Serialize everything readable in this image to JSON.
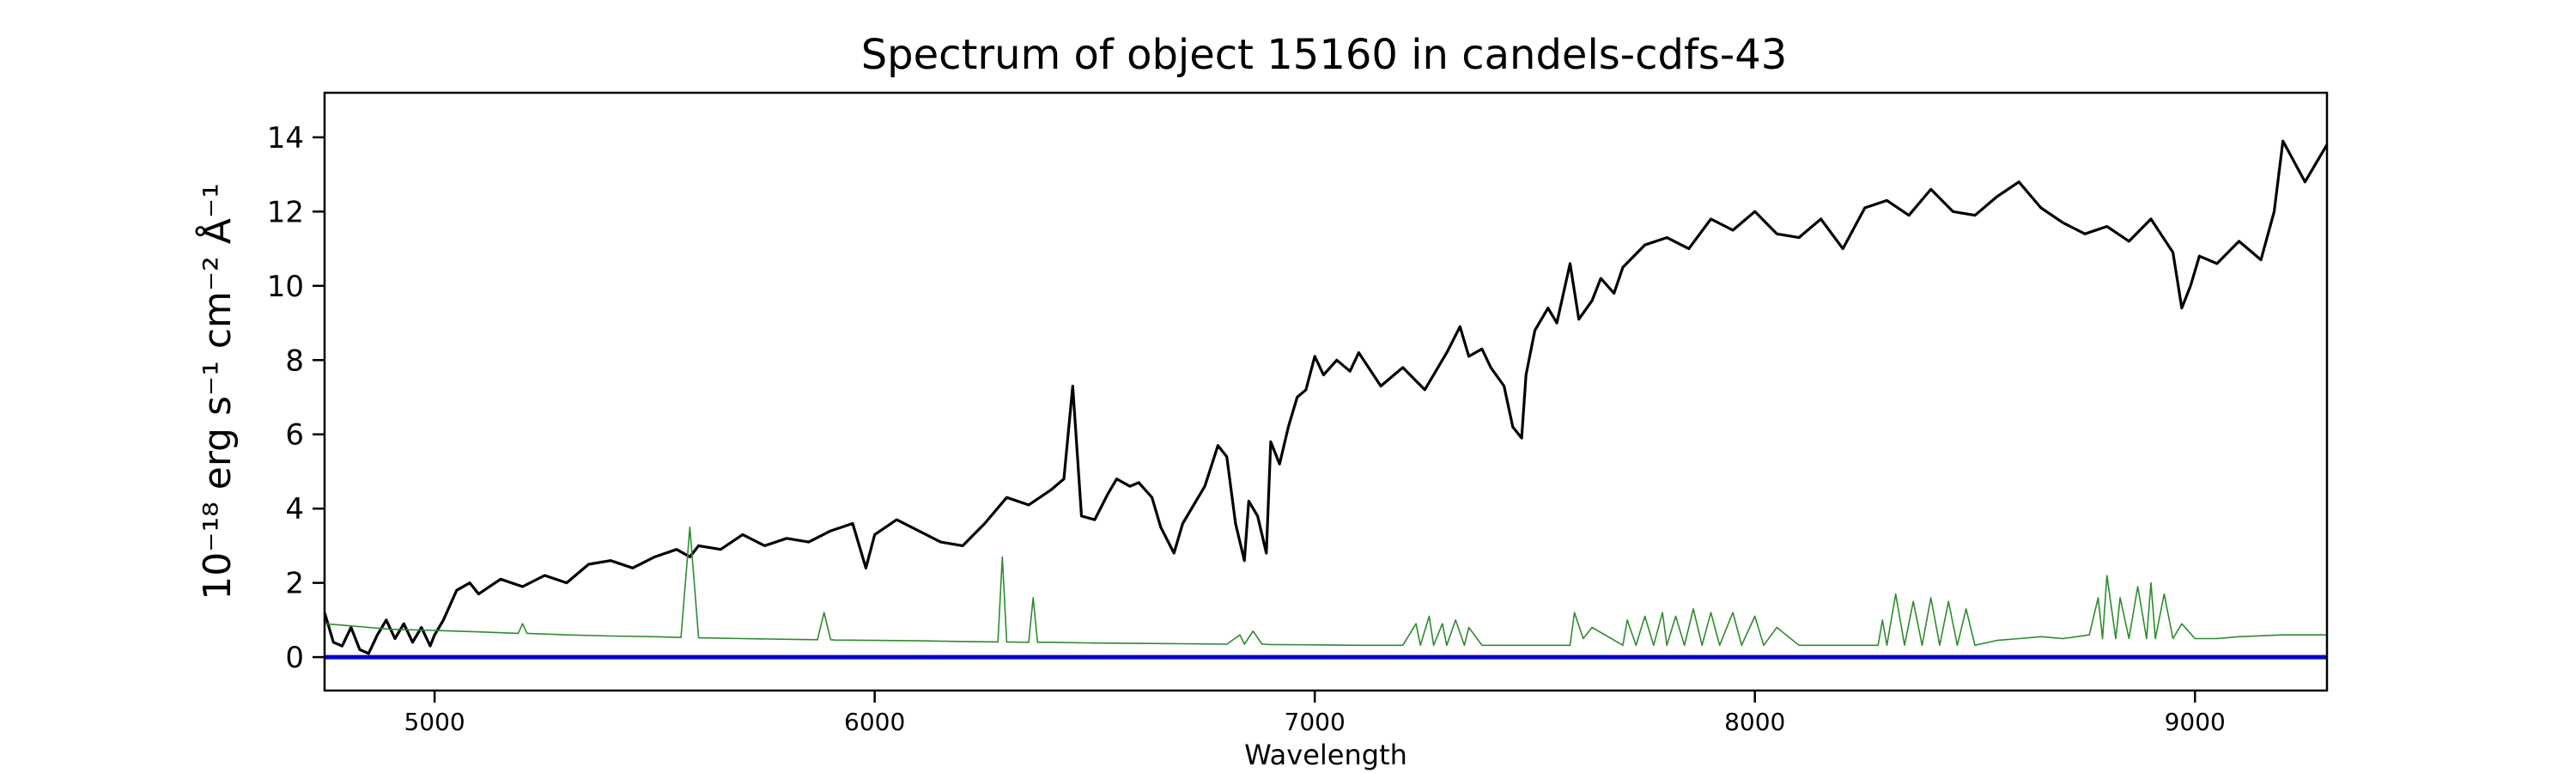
{
  "chart_data": {
    "type": "line",
    "title": "Spectrum of object 15160 in candels-cdfs-43",
    "xlabel": "Wavelength",
    "ylabel": "10⁻¹⁸ erg s⁻¹ cm⁻² Å⁻¹",
    "xlim": [
      4750,
      9300
    ],
    "ylim": [
      -0.9,
      15.2
    ],
    "xticks": [
      5000,
      6000,
      7000,
      8000,
      9000
    ],
    "yticks": [
      0,
      2,
      4,
      6,
      8,
      10,
      12,
      14
    ],
    "grid": false,
    "series": [
      {
        "color": "#000000",
        "x": [
          4750,
          4770,
          4790,
          4810,
          4830,
          4850,
          4870,
          4890,
          4910,
          4930,
          4950,
          4970,
          4990,
          5000,
          5020,
          5050,
          5080,
          5100,
          5150,
          5200,
          5250,
          5300,
          5350,
          5400,
          5450,
          5500,
          5550,
          5580,
          5600,
          5650,
          5700,
          5750,
          5800,
          5850,
          5900,
          5950,
          5980,
          6000,
          6050,
          6100,
          6150,
          6200,
          6250,
          6300,
          6350,
          6400,
          6430,
          6450,
          6470,
          6500,
          6530,
          6550,
          6580,
          6600,
          6630,
          6650,
          6680,
          6700,
          6730,
          6750,
          6780,
          6800,
          6820,
          6840,
          6850,
          6870,
          6890,
          6900,
          6920,
          6940,
          6960,
          6980,
          7000,
          7020,
          7050,
          7080,
          7100,
          7150,
          7200,
          7250,
          7300,
          7330,
          7350,
          7380,
          7400,
          7430,
          7450,
          7470,
          7480,
          7500,
          7530,
          7550,
          7580,
          7600,
          7630,
          7650,
          7680,
          7700,
          7750,
          7800,
          7850,
          7900,
          7950,
          8000,
          8050,
          8100,
          8150,
          8200,
          8250,
          8300,
          8350,
          8400,
          8450,
          8500,
          8550,
          8600,
          8650,
          8700,
          8750,
          8800,
          8850,
          8900,
          8950,
          8970,
          8990,
          9010,
          9050,
          9100,
          9150,
          9180,
          9200,
          9250,
          9280,
          9300
        ],
        "values": [
          1.2,
          0.4,
          0.3,
          0.8,
          0.2,
          0.1,
          0.6,
          1.0,
          0.5,
          0.9,
          0.4,
          0.8,
          0.3,
          0.6,
          1.0,
          1.8,
          2.0,
          1.7,
          2.1,
          1.9,
          2.2,
          2.0,
          2.5,
          2.6,
          2.4,
          2.7,
          2.9,
          2.7,
          3.0,
          2.9,
          3.3,
          3.0,
          3.2,
          3.1,
          3.4,
          3.6,
          2.4,
          3.3,
          3.7,
          3.4,
          3.1,
          3.0,
          3.6,
          4.3,
          4.1,
          4.5,
          4.8,
          7.3,
          3.8,
          3.7,
          4.4,
          4.8,
          4.6,
          4.7,
          4.3,
          3.5,
          2.8,
          3.6,
          4.2,
          4.6,
          5.7,
          5.4,
          3.6,
          2.6,
          4.2,
          3.8,
          2.8,
          5.8,
          5.2,
          6.2,
          7.0,
          7.2,
          8.1,
          7.6,
          8.0,
          7.7,
          8.2,
          7.3,
          7.8,
          7.2,
          8.2,
          8.9,
          8.1,
          8.3,
          7.8,
          7.3,
          6.2,
          5.9,
          7.6,
          8.8,
          9.4,
          9.0,
          10.6,
          9.1,
          9.6,
          10.2,
          9.8,
          10.5,
          11.1,
          11.3,
          11.0,
          11.8,
          11.5,
          12.0,
          11.4,
          11.3,
          11.8,
          11.0,
          12.1,
          12.3,
          11.9,
          12.6,
          12.0,
          11.9,
          12.4,
          12.8,
          12.1,
          11.7,
          11.4,
          11.6,
          11.2,
          11.8,
          10.9,
          9.4,
          10.0,
          10.8,
          10.6,
          11.2,
          10.7,
          12.0,
          13.9,
          12.8,
          13.4,
          13.8
        ]
      },
      {
        "color": "#2e8b2e",
        "x": [
          4750,
          4800,
          4850,
          4900,
          5000,
          5100,
          5190,
          5200,
          5210,
          5300,
          5400,
          5500,
          5560,
          5580,
          5600,
          5700,
          5800,
          5870,
          5885,
          5900,
          5910,
          6000,
          6100,
          6200,
          6280,
          6290,
          6300,
          6350,
          6360,
          6370,
          6400,
          6500,
          6600,
          6700,
          6800,
          6830,
          6840,
          6860,
          6880,
          6900,
          7000,
          7100,
          7200,
          7230,
          7240,
          7260,
          7270,
          7290,
          7300,
          7320,
          7340,
          7350,
          7380,
          7400,
          7500,
          7580,
          7590,
          7610,
          7630,
          7700,
          7710,
          7730,
          7750,
          7770,
          7790,
          7800,
          7820,
          7840,
          7860,
          7880,
          7900,
          7920,
          7950,
          7970,
          8000,
          8020,
          8050,
          8100,
          8200,
          8280,
          8290,
          8300,
          8320,
          8340,
          8360,
          8380,
          8400,
          8420,
          8440,
          8460,
          8480,
          8500,
          8550,
          8600,
          8650,
          8700,
          8760,
          8780,
          8790,
          8800,
          8820,
          8830,
          8850,
          8870,
          8890,
          8900,
          8910,
          8930,
          8950,
          8970,
          9000,
          9050,
          9100,
          9200,
          9300
        ],
        "values": [
          0.9,
          0.85,
          0.8,
          0.75,
          0.72,
          0.68,
          0.64,
          0.9,
          0.64,
          0.6,
          0.57,
          0.55,
          0.53,
          3.5,
          0.52,
          0.5,
          0.48,
          0.47,
          1.2,
          0.47,
          0.46,
          0.45,
          0.44,
          0.42,
          0.41,
          2.7,
          0.41,
          0.4,
          1.6,
          0.4,
          0.4,
          0.38,
          0.37,
          0.36,
          0.35,
          0.6,
          0.35,
          0.7,
          0.35,
          0.34,
          0.33,
          0.32,
          0.32,
          0.9,
          0.32,
          1.1,
          0.32,
          0.9,
          0.32,
          1.0,
          0.32,
          0.8,
          0.32,
          0.32,
          0.32,
          0.32,
          1.2,
          0.5,
          0.8,
          0.32,
          1.0,
          0.32,
          1.1,
          0.32,
          1.2,
          0.32,
          1.1,
          0.32,
          1.3,
          0.32,
          1.2,
          0.32,
          1.2,
          0.32,
          1.1,
          0.32,
          0.8,
          0.32,
          0.32,
          0.32,
          1.0,
          0.32,
          1.7,
          0.32,
          1.5,
          0.32,
          1.6,
          0.32,
          1.5,
          0.32,
          1.3,
          0.32,
          0.45,
          0.5,
          0.55,
          0.5,
          0.6,
          1.6,
          0.5,
          2.2,
          0.5,
          1.6,
          0.5,
          1.9,
          0.5,
          2.0,
          0.5,
          1.7,
          0.5,
          0.9,
          0.5,
          0.5,
          0.55,
          0.6,
          0.6
        ]
      },
      {
        "color": "#0000cc",
        "x": [
          4750,
          9300
        ],
        "values": [
          0,
          0
        ]
      }
    ]
  }
}
